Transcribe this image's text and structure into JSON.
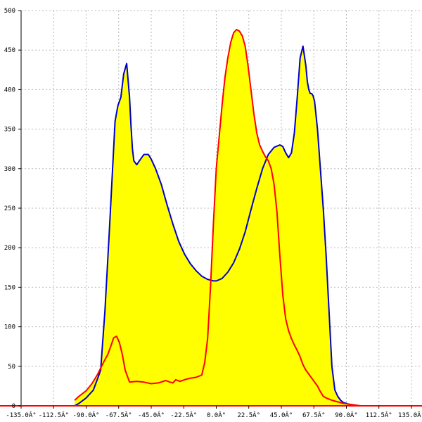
{
  "chart_data": {
    "type": "area",
    "title": "",
    "xlabel": "",
    "ylabel": "",
    "xlim": [
      -135,
      135
    ],
    "ylim": [
      0,
      500
    ],
    "grid": true,
    "x_ticks": [
      -135,
      -112.5,
      -90,
      -67.5,
      -45,
      -22.5,
      0,
      22.5,
      45,
      67.5,
      90,
      112.5,
      135
    ],
    "x_tick_labels": [
      "-135.0Â°",
      "-112.5Â°",
      "-90.0Â°",
      "-67.5Â°",
      "-45.0Â°",
      "-22.5Â°",
      "0.0Â°",
      "22.5Â°",
      "45.0Â°",
      "67.5Â°",
      "90.0Â°",
      "112.5Â°",
      "135.0Â°"
    ],
    "y_ticks": [
      0,
      50,
      100,
      150,
      200,
      250,
      300,
      350,
      400,
      450,
      500
    ],
    "y_tick_labels": [
      "0",
      "50",
      "100",
      "150",
      "200",
      "250",
      "300",
      "350",
      "400",
      "450",
      "500"
    ],
    "fill_color": "#ffff00",
    "series": [
      {
        "color": "#0000cc",
        "x": [
          -98,
          -95,
          -90,
          -85,
          -80,
          -77,
          -74,
          -72,
          -70,
          -68,
          -66,
          -64,
          -62,
          -60,
          -59,
          -58,
          -57,
          -55,
          -52,
          -50,
          -47,
          -45,
          -42,
          -38,
          -34,
          -30,
          -26,
          -22,
          -18,
          -14,
          -10,
          -6,
          -2,
          0,
          4,
          8,
          12,
          16,
          20,
          24,
          28,
          32,
          36,
          40,
          44,
          46,
          48,
          50,
          52,
          54,
          56,
          58,
          60,
          62,
          63,
          64,
          65,
          66,
          67,
          68,
          70,
          72,
          74,
          76,
          78,
          80,
          82,
          84,
          86,
          88,
          90,
          92,
          95,
          100,
          105
        ],
        "y": [
          0,
          3,
          10,
          20,
          45,
          120,
          220,
          290,
          360,
          380,
          390,
          420,
          433,
          390,
          355,
          325,
          310,
          305,
          313,
          318,
          318,
          312,
          300,
          280,
          254,
          230,
          208,
          192,
          180,
          171,
          164,
          160,
          158,
          158,
          161,
          169,
          181,
          198,
          220,
          248,
          275,
          300,
          318,
          327,
          330,
          328,
          320,
          314,
          320,
          345,
          390,
          440,
          455,
          430,
          410,
          400,
          395,
          395,
          392,
          385,
          350,
          300,
          250,
          190,
          120,
          50,
          20,
          12,
          7,
          4,
          3,
          2,
          0,
          0,
          0
        ]
      },
      {
        "color": "#ff0000",
        "x": [
          -98,
          -95,
          -90,
          -86,
          -82,
          -78,
          -75,
          -73,
          -71,
          -69,
          -67,
          -65,
          -63,
          -60,
          -55,
          -50,
          -45,
          -40,
          -35,
          -32,
          -30,
          -28,
          -25,
          -22,
          -18,
          -14,
          -10,
          -8,
          -6,
          -4,
          -2,
          0,
          2,
          4,
          6,
          8,
          10,
          12,
          14,
          16,
          18,
          20,
          22,
          24,
          26,
          28,
          30,
          32,
          34,
          36,
          38,
          40,
          42,
          44,
          46,
          48,
          50,
          52,
          54,
          56,
          58,
          60,
          62,
          64,
          66,
          68,
          70,
          72,
          74,
          76,
          80,
          84,
          88,
          92,
          96,
          100,
          105
        ],
        "y": [
          7,
          12,
          19,
          28,
          40,
          55,
          65,
          75,
          86,
          88,
          80,
          65,
          45,
          30,
          31,
          30,
          28,
          29,
          32,
          30,
          29,
          33,
          31,
          33,
          35,
          36,
          39,
          55,
          85,
          150,
          230,
          300,
          340,
          380,
          415,
          440,
          460,
          472,
          476,
          474,
          468,
          455,
          430,
          400,
          370,
          345,
          330,
          322,
          315,
          310,
          300,
          280,
          245,
          190,
          140,
          110,
          95,
          85,
          77,
          70,
          62,
          52,
          45,
          40,
          35,
          30,
          25,
          18,
          12,
          10,
          7,
          5,
          3,
          2,
          1,
          0,
          0
        ]
      }
    ]
  }
}
